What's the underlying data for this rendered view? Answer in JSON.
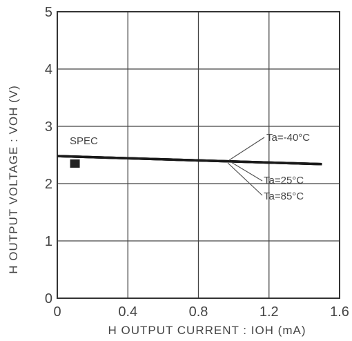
{
  "chart_data": {
    "type": "line",
    "xlabel": "H  OUTPUT  CURRENT : IOH (mA)",
    "ylabel": "H  OUTPUT VOLTAGE : VOH (V)",
    "xlim": [
      0,
      1.6
    ],
    "ylim": [
      0,
      5
    ],
    "x_ticks": [
      "0",
      "0.4",
      "0.8",
      "1.2",
      "1.6"
    ],
    "y_ticks": [
      "0",
      "1",
      "2",
      "3",
      "4",
      "5"
    ],
    "grid": true,
    "series": [
      {
        "name": "Ta=-40°C",
        "x": [
          0,
          1.5
        ],
        "y": [
          2.48,
          2.34
        ]
      },
      {
        "name": "Ta=25°C",
        "x": [
          0,
          1.5
        ],
        "y": [
          2.48,
          2.34
        ]
      },
      {
        "name": "Ta=85°C",
        "x": [
          0,
          1.5
        ],
        "y": [
          2.48,
          2.34
        ]
      }
    ],
    "spec": {
      "label": "SPEC",
      "x": 0.1,
      "y": 2.35
    },
    "colors": {
      "line": "#1a1a1a",
      "grid": "#444444",
      "text": "#444444"
    }
  }
}
